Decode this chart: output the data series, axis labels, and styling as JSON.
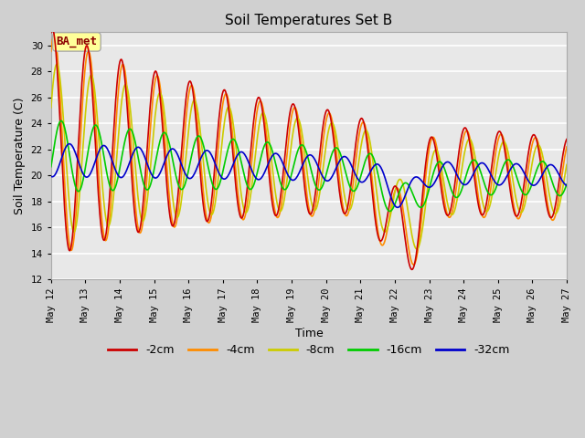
{
  "title": "Soil Temperatures Set B",
  "xlabel": "Time",
  "ylabel": "Soil Temperature (C)",
  "ylim": [
    12,
    31
  ],
  "yticks": [
    12,
    14,
    16,
    18,
    20,
    22,
    24,
    26,
    28,
    30
  ],
  "fig_bg_color": "#d0d0d0",
  "plot_bg_color": "#e8e8e8",
  "grid_color": "#ffffff",
  "legend_labels": [
    "-2cm",
    "-4cm",
    "-8cm",
    "-16cm",
    "-32cm"
  ],
  "legend_colors": [
    "#cc0000",
    "#ff8c00",
    "#cccc00",
    "#00cc00",
    "#0000cc"
  ],
  "annotation_text": "BA_met",
  "annotation_color": "#8b0000",
  "annotation_bg": "#ffff99",
  "annotation_edge": "#aaaaaa",
  "line_width": 1.2,
  "xtick_labels": [
    "May 12",
    "May 13",
    "May 14",
    "May 15",
    "May 16",
    "May 17",
    "May 18",
    "May 19",
    "May 20",
    "May 21",
    "May 22",
    "May 23",
    "May 24",
    "May 25",
    "May 26",
    "May 27"
  ]
}
